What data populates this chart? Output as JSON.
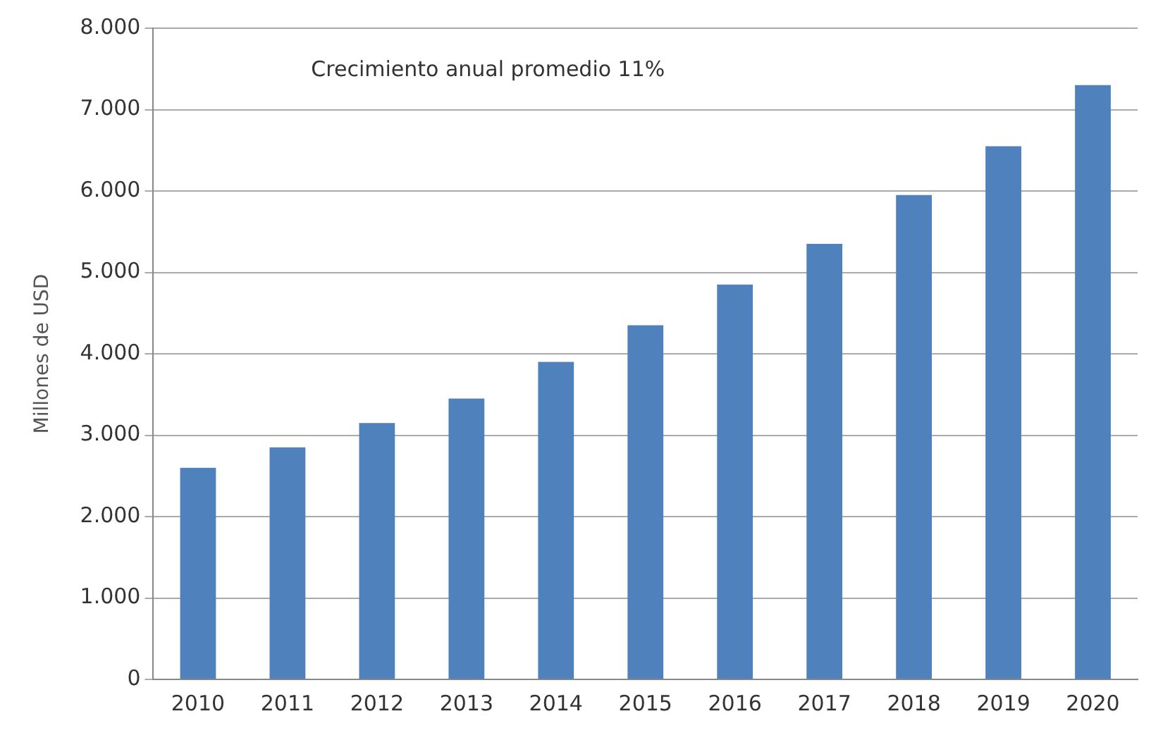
{
  "chart_data": {
    "type": "bar",
    "ylabel": "Millones de USD",
    "annotations": [
      "Crecimiento anual promedio 11%"
    ],
    "categories": [
      "2010",
      "2011",
      "2012",
      "2013",
      "2014",
      "2015",
      "2016",
      "2017",
      "2018",
      "2019",
      "2020"
    ],
    "values": [
      2600,
      2850,
      3150,
      3450,
      3900,
      4350,
      4850,
      5350,
      5950,
      6550,
      7300
    ],
    "color": "#4f81bd",
    "ylim": [
      0,
      8000
    ],
    "yticks": [
      {
        "value": 0,
        "label": "0"
      },
      {
        "value": 1000,
        "label": "1.000"
      },
      {
        "value": 2000,
        "label": "2.000"
      },
      {
        "value": 3000,
        "label": "3.000"
      },
      {
        "value": 4000,
        "label": "4.000"
      },
      {
        "value": 5000,
        "label": "5.000"
      },
      {
        "value": 6000,
        "label": "6.000"
      },
      {
        "value": 7000,
        "label": "7.000"
      },
      {
        "value": 8000,
        "label": "8.000"
      }
    ],
    "grid": "y",
    "legend": false
  }
}
